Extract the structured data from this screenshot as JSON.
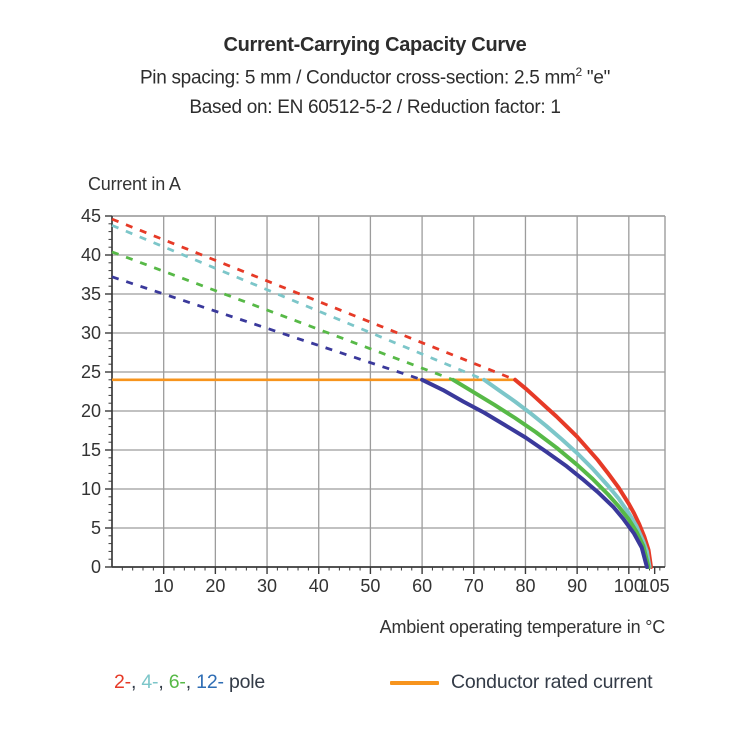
{
  "header": {
    "title": "Current-Carrying Capacity Curve",
    "subtitle1": "Pin spacing: 5 mm / Conductor cross-section: 2.5 mm",
    "subtitle1_sup": "2",
    "subtitle1_tail": " \"e\"",
    "subtitle2": "Based on: EN 60512-5-2 / Reduction factor: 1"
  },
  "chart_data": {
    "type": "line",
    "title": "Current-Carrying Capacity Curve",
    "ylabel": "Current in A",
    "xlabel": "Ambient operating temperature in °C",
    "xlim": [
      0,
      107
    ],
    "ylim": [
      0,
      45
    ],
    "x_major_ticks": [
      10,
      20,
      30,
      40,
      50,
      60,
      70,
      80,
      90,
      100,
      105
    ],
    "x_gridlines": [
      10,
      20,
      30,
      40,
      50,
      60,
      70,
      80,
      90,
      100
    ],
    "x_minor_step": 2,
    "y_major_ticks": [
      0,
      5,
      10,
      15,
      20,
      25,
      30,
      35,
      40,
      45
    ],
    "y_gridlines": [
      5,
      10,
      15,
      20,
      25,
      30,
      35,
      40,
      45
    ],
    "y_minor_step": 1,
    "grid_color": "#9c9c9c",
    "axis_color": "#3a3a3a",
    "tick_label_color": "#333333",
    "rated_current": {
      "label": "Conductor rated current",
      "value": 24,
      "x_start": 0,
      "x_end": 78,
      "color": "#f7941d"
    },
    "series": [
      {
        "name": "2-pole",
        "color": "#e63a27",
        "dashed_start": [
          0,
          44.6
        ],
        "transition": [
          78,
          24
        ],
        "solid_points": [
          [
            78,
            24
          ],
          [
            80,
            22.9
          ],
          [
            82,
            21.7
          ],
          [
            84,
            20.5
          ],
          [
            86,
            19.3
          ],
          [
            88,
            18.0
          ],
          [
            90,
            16.7
          ],
          [
            92,
            15.2
          ],
          [
            94,
            13.7
          ],
          [
            96,
            12.0
          ],
          [
            98,
            10.2
          ],
          [
            100,
            8.1
          ],
          [
            101,
            6.9
          ],
          [
            102,
            5.5
          ],
          [
            103,
            3.9
          ],
          [
            103.8,
            2.2
          ],
          [
            104.3,
            0
          ]
        ]
      },
      {
        "name": "4-pole",
        "color": "#7cc6c9",
        "dashed_start": [
          0,
          43.8
        ],
        "transition": [
          72,
          24
        ],
        "solid_points": [
          [
            72,
            24
          ],
          [
            75,
            22.6
          ],
          [
            78,
            21.2
          ],
          [
            81,
            19.7
          ],
          [
            84,
            18.1
          ],
          [
            87,
            16.4
          ],
          [
            90,
            14.6
          ],
          [
            93,
            12.6
          ],
          [
            96,
            10.4
          ],
          [
            98,
            8.8
          ],
          [
            100,
            6.9
          ],
          [
            101.5,
            5.2
          ],
          [
            102.8,
            3.3
          ],
          [
            103.5,
            2.0
          ],
          [
            104,
            0
          ]
        ]
      },
      {
        "name": "6-pole",
        "color": "#57b947",
        "dashed_start": [
          0,
          40.4
        ],
        "transition": [
          66,
          24
        ],
        "solid_points": [
          [
            66,
            24
          ],
          [
            70,
            22.4
          ],
          [
            74,
            20.8
          ],
          [
            78,
            19.1
          ],
          [
            82,
            17.3
          ],
          [
            86,
            15.3
          ],
          [
            90,
            13.1
          ],
          [
            93,
            11.3
          ],
          [
            96,
            9.3
          ],
          [
            98,
            7.8
          ],
          [
            100,
            6.1
          ],
          [
            101.5,
            4.5
          ],
          [
            102.8,
            2.7
          ],
          [
            103.8,
            0
          ]
        ]
      },
      {
        "name": "12-pole",
        "color": "#3a399b",
        "dashed_start": [
          0,
          37.2
        ],
        "transition": [
          60,
          24
        ],
        "solid_points": [
          [
            60,
            24
          ],
          [
            64,
            22.7
          ],
          [
            68,
            21.2
          ],
          [
            72,
            19.8
          ],
          [
            76,
            18.2
          ],
          [
            80,
            16.6
          ],
          [
            84,
            14.8
          ],
          [
            88,
            12.9
          ],
          [
            91,
            11.3
          ],
          [
            94,
            9.6
          ],
          [
            97,
            7.7
          ],
          [
            99,
            6.1
          ],
          [
            101,
            4.3
          ],
          [
            102.5,
            2.5
          ],
          [
            103.5,
            0
          ]
        ]
      }
    ]
  },
  "legend": {
    "pole_items": [
      {
        "label": "2-",
        "color": "#e63a27"
      },
      {
        "label": "4-",
        "color": "#7cc6c9"
      },
      {
        "label": "6-",
        "color": "#57b947"
      },
      {
        "label": "12-",
        "color": "#2e6db4"
      }
    ],
    "separator": ", ",
    "pole_suffix": " pole",
    "suffix_color": "#333b47",
    "rated_label": "Conductor rated current",
    "rated_color": "#f7941d"
  }
}
